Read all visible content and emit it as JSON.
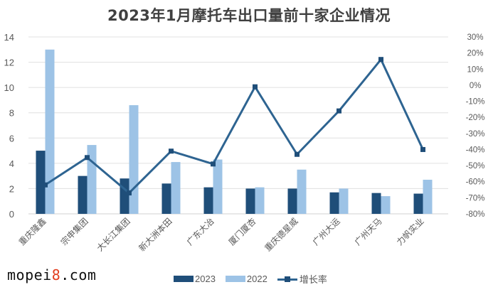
{
  "title": "2023年1月摩托车出口量前十家企业情况",
  "watermark": {
    "prefix": "mopei",
    "highlight": "8",
    "suffix": ".com"
  },
  "legend": {
    "s2023": "2023",
    "s2022": "2022",
    "growth": "增长率"
  },
  "colors": {
    "s2023": "#1f4e79",
    "s2022": "#9dc3e6",
    "growth": "#2e6491",
    "grid": "#e0e0e0",
    "axis_text": "#595959"
  },
  "chart_data": {
    "type": "bar",
    "title": "2023年1月摩托车出口量前十家企业情况",
    "xlabel": "",
    "ylabel": "",
    "ylim": [
      0,
      14
    ],
    "y2lim": [
      -80,
      30
    ],
    "grid": true,
    "legend_position": "bottom",
    "categories": [
      "重庆隆鑫",
      "宗申集团",
      "大长江集团",
      "新大洲本田",
      "广东大冶",
      "厦门厦杏",
      "重庆德星威",
      "广州大运",
      "广州天马",
      "力帆实业"
    ],
    "y_ticks": [
      "0",
      "2",
      "4",
      "6",
      "8",
      "10",
      "12",
      "14"
    ],
    "y2_ticks": [
      "-80%",
      "-70%",
      "-60%",
      "-50%",
      "-40%",
      "-30%",
      "-20%",
      "-10%",
      "0%",
      "10%",
      "20%",
      "30%"
    ],
    "series": [
      {
        "name": "2023",
        "type": "bar",
        "axis": "left",
        "values": [
          5.0,
          3.0,
          2.8,
          2.4,
          2.1,
          2.0,
          2.0,
          1.7,
          1.65,
          1.6
        ]
      },
      {
        "name": "2022",
        "type": "bar",
        "axis": "left",
        "values": [
          13.0,
          5.45,
          8.6,
          4.1,
          4.3,
          2.1,
          3.5,
          2.0,
          1.4,
          2.7
        ]
      },
      {
        "name": "增长率",
        "type": "line",
        "axis": "right",
        "unit": "%",
        "values": [
          -62,
          -45,
          -67,
          -41,
          -49,
          -1,
          -43,
          -16,
          16,
          -40
        ]
      }
    ]
  }
}
